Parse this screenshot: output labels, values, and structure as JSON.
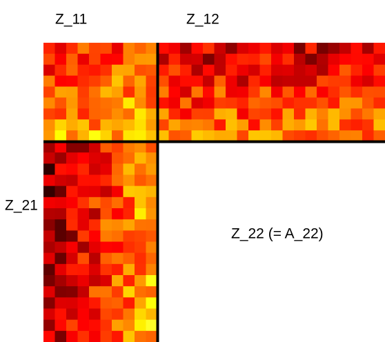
{
  "blocks": [
    {
      "label": "Z_11"
    },
    {
      "label": "Z_12"
    },
    {
      "label": "Z_21"
    },
    {
      "label": "Z_22 (= A_22)"
    }
  ]
}
